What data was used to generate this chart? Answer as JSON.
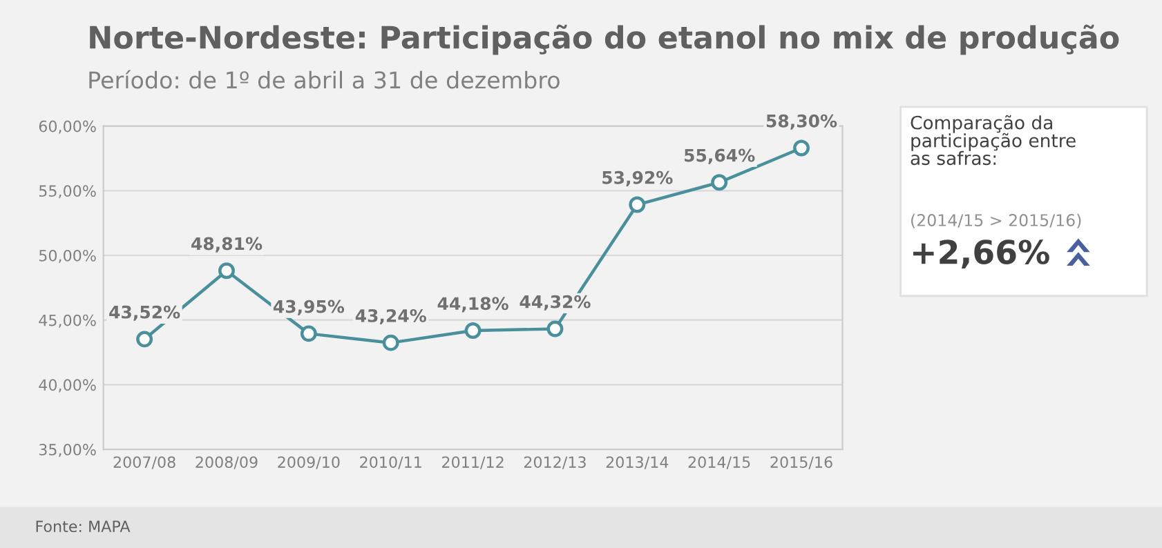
{
  "chart_data": {
    "type": "line",
    "title": "Norte-Nordeste: Participação do etanol no mix de produção",
    "subtitle": "Período: de 1º de abril a 31 de dezembro",
    "categories": [
      "2007/08",
      "2008/09",
      "2009/10",
      "2010/11",
      "2011/12",
      "2012/13",
      "2013/14",
      "2014/15",
      "2015/16"
    ],
    "series": [
      {
        "color": "#4a8f9c",
        "values": [
          43.52,
          48.81,
          43.95,
          43.24,
          44.18,
          44.32,
          53.92,
          55.64,
          58.3
        ],
        "value_labels": [
          "43,52%",
          "48,81%",
          "43,95%",
          "43,24%",
          "44,18%",
          "44,32%",
          "53,92%",
          "55,64%",
          "58,30%"
        ]
      }
    ],
    "ylim": [
      35,
      60
    ],
    "yticks": [
      {
        "value": 35,
        "label": "35,00%"
      },
      {
        "value": 40,
        "label": "40,00%"
      },
      {
        "value": 45,
        "label": "45,00%"
      },
      {
        "value": 50,
        "label": "50,00%"
      },
      {
        "value": 55,
        "label": "55,00%"
      },
      {
        "value": 60,
        "label": "60,00%"
      }
    ],
    "grid": "y",
    "marker": "circle",
    "line_style": "solid",
    "legend": false,
    "annotations": [
      "Fonte: MAPA",
      "Comparação da\nparticipação entre\nas safras:",
      "(2014/15 > 2015/16)",
      "+2,66%"
    ]
  }
}
